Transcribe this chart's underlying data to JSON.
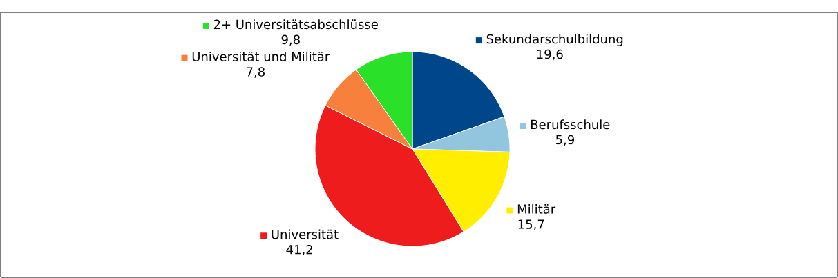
{
  "chart_data": {
    "type": "pie",
    "categories": [
      "Sekundarschulbildung",
      "Berufsschule",
      "Militär",
      "Universität",
      "Universität und Militär",
      "2+ Universitätsabschlüsse"
    ],
    "values": [
      19.6,
      5.9,
      15.7,
      41.2,
      7.8,
      9.8
    ],
    "value_labels": [
      "19,6",
      "5,9",
      "15,7",
      "41,2",
      "7,8",
      "9,8"
    ],
    "legend": "top",
    "colors": [
      "#00468b",
      "#92c5de",
      "#ffee00",
      "#ee1c1c",
      "#f7803c",
      "#2ae028"
    ]
  }
}
